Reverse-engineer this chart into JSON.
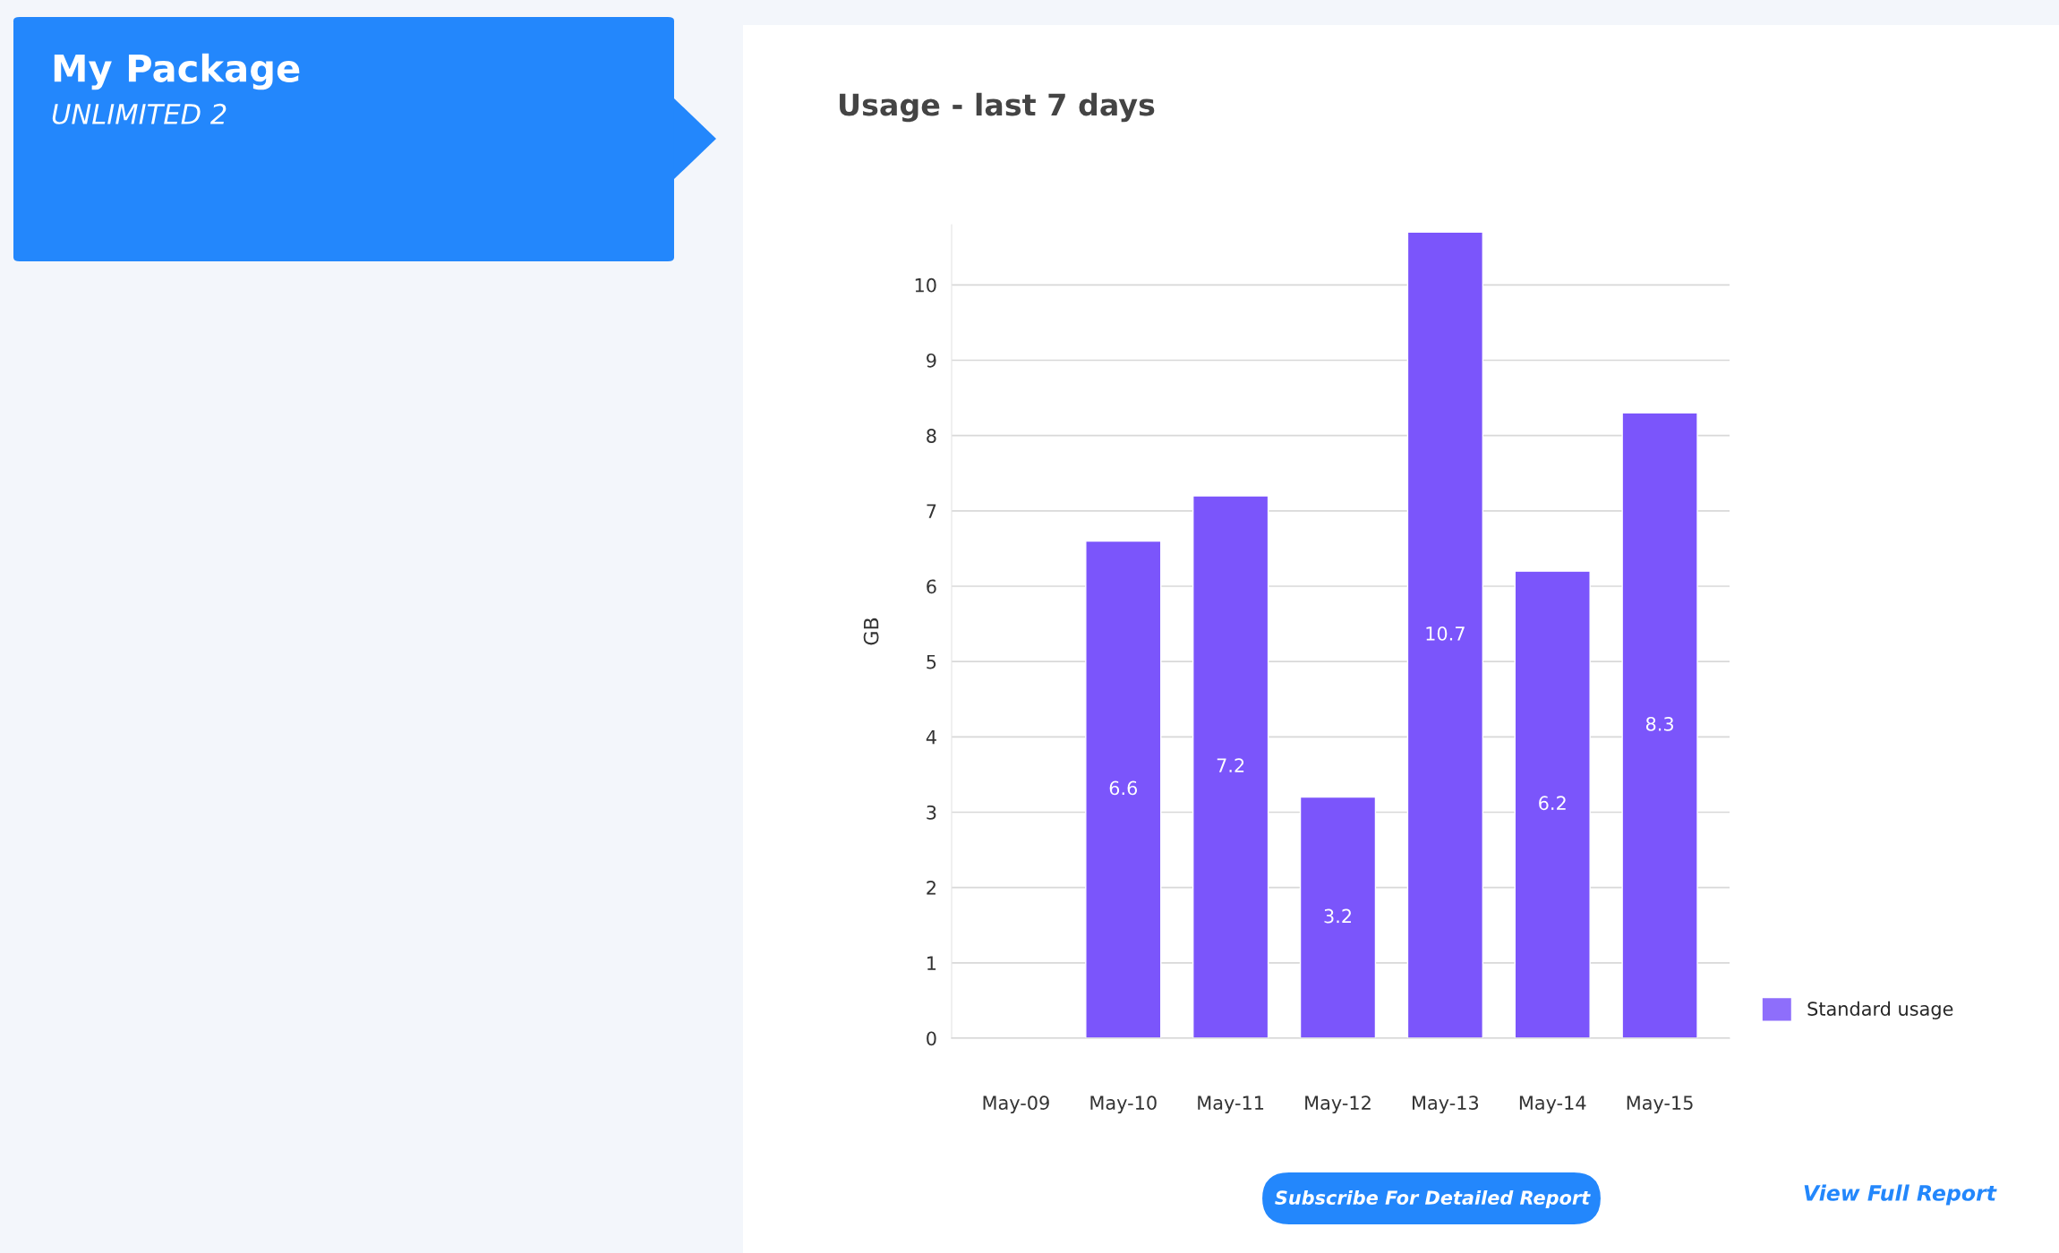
{
  "chart_data": {
    "type": "bar",
    "title": "Usage - last 7 days",
    "ylabel": "GB",
    "categories": [
      "May-09",
      "May-10",
      "May-11",
      "May-12",
      "May-13",
      "May-14",
      "May-15"
    ],
    "series": [
      {
        "name": "Standard usage",
        "color": "#7b55fb",
        "values": [
          null,
          6.6,
          7.2,
          3.2,
          10.7,
          6.2,
          8.3
        ],
        "value_labels": [
          null,
          "6.6",
          "7.2",
          "3.2",
          "10.7",
          "6.2",
          "8.3"
        ]
      }
    ],
    "ylim": [
      0,
      10.8
    ],
    "yticks": [
      0,
      1,
      2,
      3,
      4,
      5,
      6,
      7,
      8,
      9,
      10
    ],
    "grid": "y",
    "legend": "bottom right",
    "annotations": [
      "My Package",
      "UNLIMITED 2",
      "Subscribe For Detailed Report",
      "View Full Report"
    ]
  }
}
